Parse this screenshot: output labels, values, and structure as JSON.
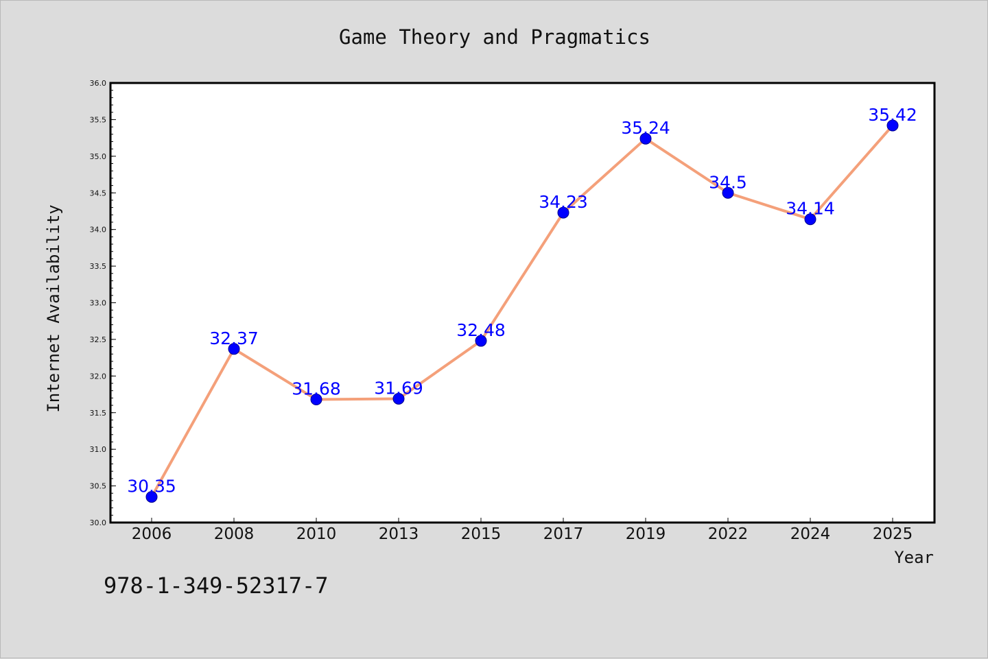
{
  "chart_data": {
    "type": "line",
    "title": "Game Theory and Pragmatics",
    "xlabel": "Year",
    "ylabel": "Internet Availability",
    "categories": [
      "2006",
      "2008",
      "2010",
      "2013",
      "2015",
      "2017",
      "2019",
      "2022",
      "2024",
      "2025"
    ],
    "series": [
      {
        "values": [
          30.35,
          32.37,
          31.68,
          31.69,
          32.48,
          34.23,
          35.24,
          34.5,
          34.14,
          35.42
        ],
        "labels": [
          "30.35",
          "32.37",
          "31.68",
          "31.69",
          "32.48",
          "34.23",
          "35.24",
          "34.5",
          "34.14",
          "35.42"
        ],
        "line_color": "#f4a07a",
        "marker_color": "#0000ff"
      }
    ],
    "ylim": [
      30.0,
      36.0
    ],
    "yticks": [
      "30.0",
      "30.5",
      "31.0",
      "31.5",
      "32.0",
      "32.5",
      "33.0",
      "33.5",
      "34.0",
      "34.5",
      "35.0",
      "35.5",
      "36.0"
    ],
    "grid": false,
    "legend": false
  },
  "footer_text": "978-1-349-52317-7",
  "colors": {
    "background": "#dcdcdc",
    "plot_area": "#ffffff",
    "line": "#f4a07a",
    "markers": "#0000ff",
    "data_labels": "#0000ff"
  }
}
